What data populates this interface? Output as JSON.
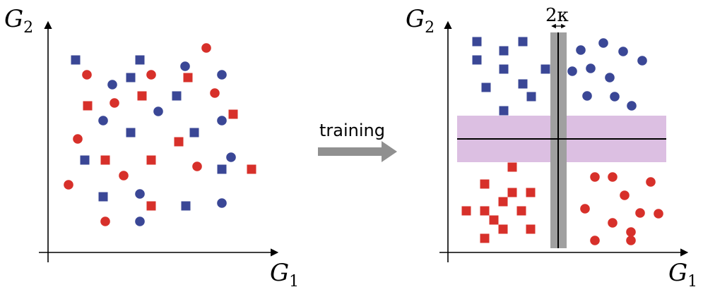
{
  "left_panel": {
    "y_axis": {
      "symbol": "G",
      "subscript": "2"
    },
    "x_axis": {
      "symbol": "G",
      "subscript": "1"
    }
  },
  "right_panel": {
    "y_axis": {
      "symbol": "G",
      "subscript": "2"
    },
    "x_axis": {
      "symbol": "G",
      "subscript": "1"
    },
    "margin_label": "2κ"
  },
  "transition": {
    "label": "training"
  },
  "colors": {
    "blue": "#3a4796",
    "red": "#d7302a",
    "band_purple": "#dcbfe2",
    "band_gray": "#a0a0a0",
    "arrow_gray": "#909090"
  },
  "legend_encoding": {
    "shapes": [
      "square",
      "circle"
    ],
    "colors": [
      "blue",
      "red"
    ]
  }
}
